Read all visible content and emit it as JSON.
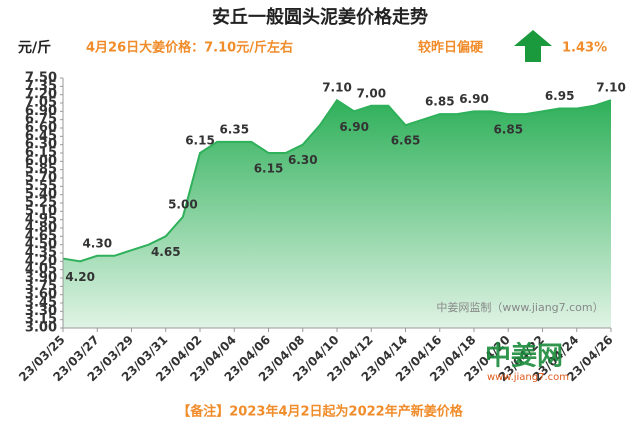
{
  "chart_data": {
    "type": "area",
    "title": "安丘一般圆头泥姜价格走势",
    "y_unit": "元/斤",
    "subtitle": "4月26日大姜价格：7.10元/斤左右",
    "change_text": "较昨日偏硬",
    "change_pct": "1.43%",
    "watermark": "中姜网监制（www.jiang7.com）",
    "logo": "中姜网",
    "logo_url": "www.jiang7.com",
    "note": "【备注】2023年4月2日起为2022年产新姜价格",
    "color": "#2fb05a",
    "categories": [
      "23/03/25",
      null,
      "23/03/27",
      null,
      "23/03/29",
      null,
      "23/03/31",
      null,
      "23/04/02",
      null,
      "23/04/04",
      null,
      "23/04/06",
      null,
      "23/04/08",
      null,
      "23/04/10",
      null,
      "23/04/12",
      null,
      "23/04/14",
      null,
      "23/04/16",
      null,
      "23/04/18",
      null,
      "23/04/20",
      null,
      "23/04/22",
      null,
      "23/04/24",
      null,
      "23/04/26"
    ],
    "values": [
      4.25,
      4.2,
      4.3,
      4.3,
      4.4,
      4.5,
      4.65,
      5.0,
      6.15,
      6.35,
      6.35,
      6.35,
      6.15,
      6.15,
      6.3,
      6.65,
      7.1,
      6.9,
      7.0,
      7.0,
      6.65,
      6.75,
      6.85,
      6.85,
      6.9,
      6.9,
      6.85,
      6.85,
      6.9,
      6.95,
      6.95,
      7.0,
      7.1
    ],
    "value_labels": [
      null,
      "4.20",
      "4.30",
      null,
      null,
      null,
      "4.65",
      "5.00",
      "6.15",
      null,
      "6.35",
      null,
      "6.15",
      null,
      "6.30",
      null,
      "7.10",
      "6.90",
      "7.00",
      null,
      "6.65",
      null,
      "6.85",
      null,
      "6.90",
      null,
      "6.85",
      null,
      null,
      "6.95",
      null,
      null,
      "7.10"
    ],
    "ylim": [
      3.0,
      7.5
    ],
    "yticks": [
      {
        "value": 3.0,
        "label": "3.00"
      },
      3.15,
      {
        "value": 3.3,
        "label": "3.30"
      },
      3.45,
      {
        "value": 3.6,
        "label": "3.60"
      },
      3.75,
      {
        "value": 3.9,
        "label": "3.90"
      },
      4.05,
      {
        "value": 4.2,
        "label": "4.20"
      },
      4.35,
      {
        "value": 4.5,
        "label": "4.50"
      },
      4.65,
      {
        "value": 4.8,
        "label": "4.80"
      },
      4.95,
      {
        "value": 5.1,
        "label": "5.10"
      },
      5.25,
      {
        "value": 5.4,
        "label": "5.40"
      },
      5.55,
      {
        "value": 5.7,
        "label": "5.70"
      },
      5.85,
      {
        "value": 6.0,
        "label": "6.00"
      },
      6.15,
      {
        "value": 6.3,
        "label": "6.30"
      },
      6.45,
      {
        "value": 6.6,
        "label": "6.60"
      },
      6.75,
      {
        "value": 6.9,
        "label": "6.90"
      },
      7.05,
      {
        "value": 7.2,
        "label": "7.20"
      },
      7.35,
      {
        "value": 7.5,
        "label": "7.50"
      }
    ]
  }
}
